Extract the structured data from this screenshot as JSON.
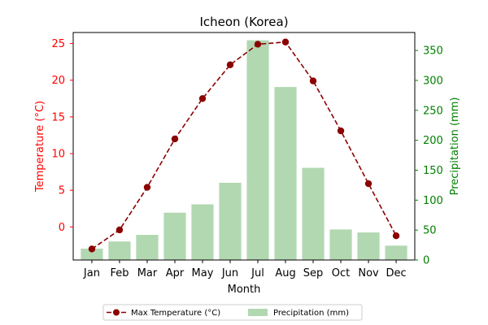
{
  "chart_data": {
    "type": "bar",
    "title": "Icheon (Korea)",
    "xlabel": "Month",
    "ylabel_left": "Temperature (°C)",
    "ylabel_right": "Precipitation (mm)",
    "categories": [
      "Jan",
      "Feb",
      "Mar",
      "Apr",
      "May",
      "Jun",
      "Jul",
      "Aug",
      "Sep",
      "Oct",
      "Nov",
      "Dec"
    ],
    "series": [
      {
        "name": "Max Temperature (°C)",
        "type": "line",
        "axis": "left",
        "values": [
          -3.0,
          -0.4,
          5.4,
          12.0,
          17.5,
          22.1,
          24.9,
          25.2,
          19.9,
          13.1,
          5.9,
          -1.2
        ]
      },
      {
        "name": "Precipitation (mm)",
        "type": "bar",
        "axis": "right",
        "values": [
          19,
          31,
          42,
          79,
          93,
          129,
          367,
          289,
          154,
          51,
          46,
          24
        ]
      }
    ],
    "ylim_left": [
      -4.5,
      26.5
    ],
    "yticks_left": [
      0,
      5,
      10,
      15,
      20,
      25
    ],
    "ylim_right": [
      0,
      380
    ],
    "yticks_right": [
      0,
      50,
      100,
      150,
      200,
      250,
      300,
      350
    ],
    "legend_position": "bottom-center",
    "grid": false,
    "colors": {
      "line": "#8b0000",
      "bar": "#b2d8b2",
      "left_axis": "#ff0000",
      "right_axis": "#008000"
    }
  }
}
